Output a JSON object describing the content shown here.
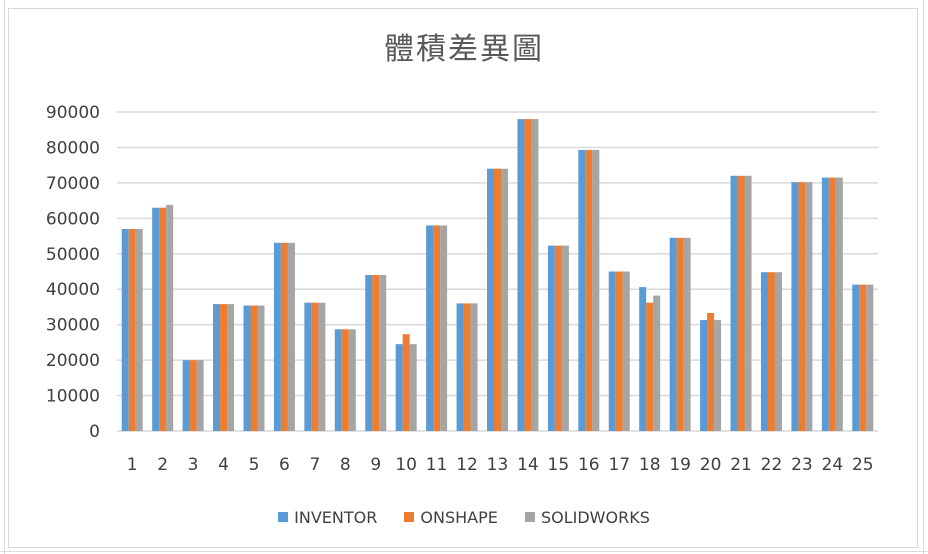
{
  "chart_data": {
    "type": "bar",
    "title": "體積差異圖",
    "xlabel": "",
    "ylabel": "",
    "ylim": [
      0,
      90000
    ],
    "yticks": [
      0,
      10000,
      20000,
      30000,
      40000,
      50000,
      60000,
      70000,
      80000,
      90000
    ],
    "grid": true,
    "legend_position": "bottom",
    "categories": [
      "1",
      "2",
      "3",
      "4",
      "5",
      "6",
      "7",
      "8",
      "9",
      "10",
      "11",
      "12",
      "13",
      "14",
      "15",
      "16",
      "17",
      "18",
      "19",
      "20",
      "21",
      "22",
      "23",
      "24",
      "25"
    ],
    "series": [
      {
        "name": "INVENTOR",
        "color": "#5b9bd5",
        "values": [
          57000,
          63000,
          20000,
          35800,
          35400,
          53100,
          36200,
          28700,
          44000,
          24500,
          58000,
          36000,
          74000,
          88000,
          52300,
          79300,
          45000,
          40600,
          54500,
          31300,
          72000,
          44800,
          70200,
          71500,
          41300
        ]
      },
      {
        "name": "ONSHAPE",
        "color": "#ed7d31",
        "values": [
          57000,
          63000,
          20000,
          35800,
          35400,
          53100,
          36200,
          28700,
          44000,
          27300,
          58000,
          36000,
          74000,
          88000,
          52300,
          79300,
          45000,
          36200,
          54500,
          33300,
          72000,
          44800,
          70200,
          71500,
          41300
        ]
      },
      {
        "name": "SOLIDWORKS",
        "color": "#a5a5a5",
        "values": [
          57000,
          63800,
          20000,
          35800,
          35400,
          53100,
          36200,
          28700,
          44000,
          24500,
          58000,
          36000,
          74000,
          88000,
          52300,
          79300,
          45000,
          38200,
          54500,
          31300,
          72000,
          44800,
          70200,
          71500,
          41300
        ]
      }
    ]
  }
}
